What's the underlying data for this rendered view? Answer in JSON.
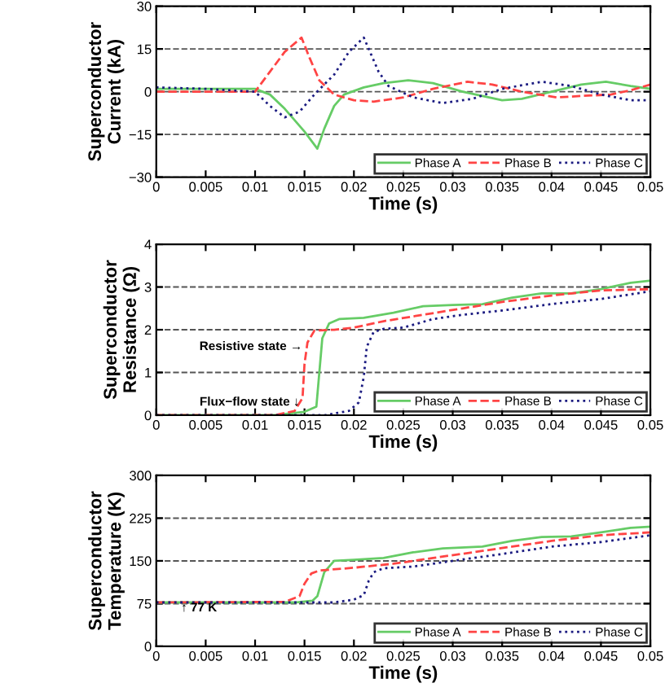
{
  "chart_data": [
    {
      "type": "line",
      "xlabel": "Time (s)",
      "ylabel": "Superconductor\nCurrent (kA)",
      "xlim": [
        0,
        0.05
      ],
      "xticks": [
        0,
        0.005,
        0.01,
        0.015,
        0.02,
        0.025,
        0.03,
        0.035,
        0.04,
        0.045,
        0.05
      ],
      "ylim": [
        -30,
        30
      ],
      "yticks": [
        {
          "value": -30,
          "label": "−30"
        },
        {
          "value": -15,
          "label": "−15"
        },
        0,
        15,
        30
      ],
      "grid": "y",
      "legend": "bottom right",
      "series": [
        {
          "name": "Phase A",
          "color": "#66cc66",
          "line_style": "solid",
          "x": [
            0,
            0.005,
            0.01,
            0.0115,
            0.013,
            0.015,
            0.0163,
            0.017,
            0.018,
            0.019,
            0.021,
            0.023,
            0.0255,
            0.028,
            0.031,
            0.035,
            0.037,
            0.04,
            0.043,
            0.0455,
            0.048,
            0.05
          ],
          "values": [
            1,
            1,
            1,
            -1,
            -6,
            -14,
            -20,
            -13,
            -5,
            -1,
            1.5,
            3,
            4,
            3,
            0,
            -3,
            -2.5,
            0,
            2.5,
            3.5,
            2,
            1
          ]
        },
        {
          "name": "Phase B",
          "color": "#ff4444",
          "line_style": "dashed",
          "x": [
            0,
            0.01,
            0.0115,
            0.013,
            0.0147,
            0.0155,
            0.0165,
            0.018,
            0.02,
            0.022,
            0.025,
            0.028,
            0.0315,
            0.034,
            0.037,
            0.0405,
            0.043,
            0.046,
            0.048,
            0.05
          ],
          "values": [
            0,
            0,
            7,
            14,
            19,
            12,
            4,
            -1,
            -3,
            -3.5,
            -2,
            1,
            3.5,
            2.5,
            0,
            -2,
            -1.5,
            -1,
            0.5,
            2.5
          ]
        },
        {
          "name": "Phase C",
          "color": "#1a1a80",
          "line_style": "dotted",
          "x": [
            0,
            0.005,
            0.01,
            0.0115,
            0.013,
            0.0145,
            0.016,
            0.018,
            0.0195,
            0.021,
            0.0225,
            0.0235,
            0.026,
            0.029,
            0.032,
            0.035,
            0.039,
            0.042,
            0.045,
            0.048,
            0.05
          ],
          "values": [
            1.5,
            1,
            0,
            -5,
            -9,
            -7,
            -1,
            6,
            14,
            19,
            7,
            2,
            -2,
            -4,
            -2.5,
            1,
            3.5,
            2,
            -1,
            -3,
            -3
          ]
        }
      ]
    },
    {
      "type": "line",
      "xlabel": "Time (s)",
      "ylabel": "Superconductor\nResistance (Ω)",
      "xlim": [
        0,
        0.05
      ],
      "xticks": [
        0,
        0.005,
        0.01,
        0.015,
        0.02,
        0.025,
        0.03,
        0.035,
        0.04,
        0.045,
        0.05
      ],
      "ylim": [
        0,
        4
      ],
      "yticks": [
        0,
        1,
        2,
        3,
        4
      ],
      "grid": "y",
      "legend": "bottom right",
      "annotations": [
        {
          "text": "Resistive state →",
          "x": 0.0148,
          "y": 1.6
        },
        {
          "text": "Flux−flow state ↓",
          "x": 0.0145,
          "y": 0.3
        }
      ],
      "series": [
        {
          "name": "Phase A",
          "color": "#66cc66",
          "line_style": "solid",
          "x": [
            0,
            0.012,
            0.015,
            0.0162,
            0.0165,
            0.0168,
            0.0175,
            0.0185,
            0.021,
            0.024,
            0.027,
            0.03,
            0.033,
            0.036,
            0.039,
            0.042,
            0.045,
            0.048,
            0.05
          ],
          "values": [
            0,
            0,
            0.08,
            0.2,
            1.0,
            1.8,
            2.15,
            2.25,
            2.28,
            2.4,
            2.55,
            2.58,
            2.6,
            2.75,
            2.85,
            2.85,
            2.95,
            3.1,
            3.15
          ]
        },
        {
          "name": "Phase B",
          "color": "#ff4444",
          "line_style": "dashed",
          "x": [
            0,
            0.012,
            0.014,
            0.0148,
            0.015,
            0.0153,
            0.016,
            0.018,
            0.02,
            0.023,
            0.027,
            0.031,
            0.035,
            0.04,
            0.045,
            0.05
          ],
          "values": [
            0,
            0,
            0.1,
            0.4,
            1.2,
            1.7,
            1.98,
            2.0,
            2.05,
            2.2,
            2.35,
            2.5,
            2.65,
            2.8,
            2.92,
            2.95
          ]
        },
        {
          "name": "Phase C",
          "color": "#1a1a80",
          "line_style": "dotted",
          "x": [
            0,
            0.017,
            0.0195,
            0.0205,
            0.021,
            0.0213,
            0.022,
            0.023,
            0.025,
            0.028,
            0.031,
            0.035,
            0.04,
            0.045,
            0.05
          ],
          "values": [
            0,
            0,
            0.1,
            0.3,
            0.9,
            1.6,
            1.95,
            2.02,
            2.05,
            2.25,
            2.35,
            2.45,
            2.6,
            2.72,
            2.9
          ]
        }
      ]
    },
    {
      "type": "line",
      "xlabel": "Time (s)",
      "ylabel": "Superconductor\nTemperature (K)",
      "xlim": [
        0,
        0.05
      ],
      "xticks": [
        0,
        0.005,
        0.01,
        0.015,
        0.02,
        0.025,
        0.03,
        0.035,
        0.04,
        0.045,
        0.05
      ],
      "ylim": [
        0,
        300
      ],
      "yticks": [
        0,
        75,
        150,
        225,
        300
      ],
      "grid": "y",
      "legend": "bottom right",
      "annotations": [
        {
          "text": "↑ 77 K",
          "x": 0.0025,
          "y": 77
        }
      ],
      "series": [
        {
          "name": "Phase A",
          "color": "#66cc66",
          "line_style": "solid",
          "x": [
            0,
            0.014,
            0.0158,
            0.0163,
            0.017,
            0.018,
            0.02,
            0.023,
            0.026,
            0.029,
            0.033,
            0.036,
            0.039,
            0.042,
            0.045,
            0.048,
            0.05
          ],
          "values": [
            77,
            77,
            80,
            88,
            130,
            150,
            152,
            155,
            165,
            172,
            175,
            185,
            192,
            193,
            200,
            208,
            210
          ]
        },
        {
          "name": "Phase B",
          "color": "#ff4444",
          "line_style": "dashed",
          "x": [
            0,
            0.013,
            0.0145,
            0.015,
            0.0157,
            0.0165,
            0.02,
            0.024,
            0.028,
            0.032,
            0.036,
            0.04,
            0.045,
            0.05
          ],
          "values": [
            77,
            78,
            88,
            110,
            128,
            133,
            138,
            145,
            155,
            165,
            175,
            185,
            195,
            200
          ]
        },
        {
          "name": "Phase C",
          "color": "#1a1a80",
          "line_style": "dotted",
          "x": [
            0,
            0.018,
            0.02,
            0.021,
            0.0215,
            0.022,
            0.023,
            0.026,
            0.03,
            0.035,
            0.04,
            0.045,
            0.05
          ],
          "values": [
            77,
            77,
            82,
            90,
            115,
            130,
            137,
            140,
            150,
            162,
            175,
            183,
            195
          ]
        }
      ]
    }
  ]
}
